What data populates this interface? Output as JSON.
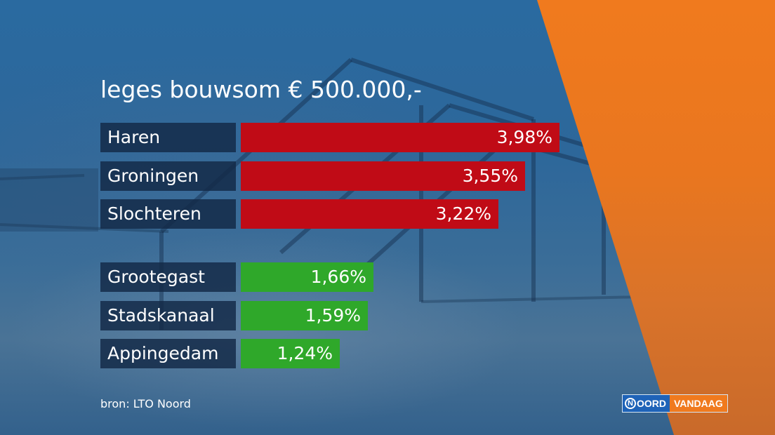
{
  "title": "leges bouwsom € 500.000,-",
  "source": "bron: LTO Noord",
  "logo": {
    "left_initial": "N",
    "left_rest": "OORD",
    "right_text": "VANDAAG"
  },
  "colors": {
    "high": "#c00b16",
    "low": "#2fa82a",
    "label_bg": "#12284a",
    "orange": "#f07a1e"
  },
  "chart_data": {
    "type": "bar",
    "orientation": "horizontal",
    "title": "leges bouwsom € 500.000,-",
    "categories": [
      "Haren",
      "Groningen",
      "Slochteren",
      "Grootegast",
      "Stadskanaal",
      "Appingedam"
    ],
    "values": [
      3.98,
      3.55,
      3.22,
      1.66,
      1.59,
      1.24
    ],
    "value_labels": [
      "3,98%",
      "3,55%",
      "3,22%",
      "1,66%",
      "1,59%",
      "1,24%"
    ],
    "groups": [
      "high",
      "high",
      "high",
      "low",
      "low",
      "low"
    ],
    "unit": "%",
    "xlim": [
      0,
      4.5
    ],
    "grid": false
  }
}
